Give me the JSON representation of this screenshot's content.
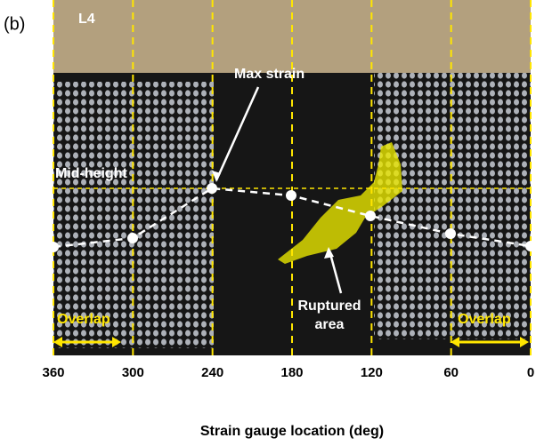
{
  "panel_label": "(b)",
  "photo": {
    "specimen": "L4",
    "max_strain": "Max strain",
    "mid_height": "Mid-height",
    "ruptured": [
      "Ruptured",
      "area"
    ],
    "overlap_left": "Overlap",
    "overlap_right": "Overlap"
  },
  "x_axis": {
    "label": "Strain gauge location (deg)",
    "xlim": [
      360,
      0
    ],
    "ticks": [
      360,
      300,
      240,
      180,
      120,
      60,
      0
    ]
  }
}
